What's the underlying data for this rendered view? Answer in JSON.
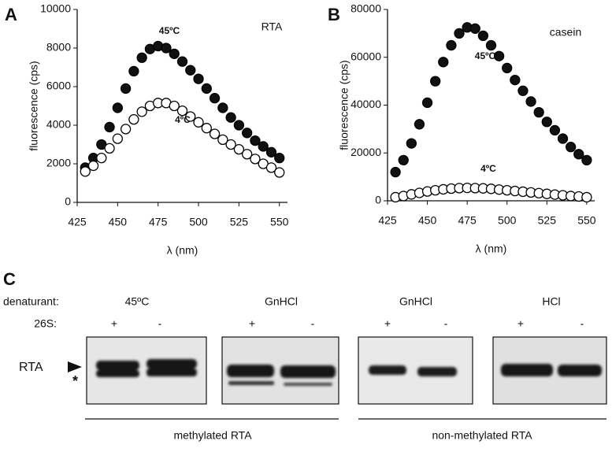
{
  "chart_data": [
    {
      "type": "scatter",
      "panel": "A",
      "x_label": "λ (nm)",
      "y_label": "fluorescence (cps)",
      "annotations": [
        "RTA",
        "45ºC",
        "4ºC"
      ],
      "x": [
        430,
        435,
        440,
        445,
        450,
        455,
        460,
        465,
        470,
        475,
        480,
        485,
        490,
        495,
        500,
        505,
        510,
        515,
        520,
        525,
        530,
        535,
        540,
        545,
        550
      ],
      "series": [
        {
          "color": "#111111",
          "values": [
            1800,
            2300,
            3000,
            3900,
            4900,
            5900,
            6800,
            7500,
            7950,
            8100,
            8000,
            7700,
            7300,
            6850,
            6400,
            5900,
            5400,
            4900,
            4400,
            4000,
            3600,
            3200,
            2900,
            2600,
            2300
          ]
        },
        {
          "color": "#ffffff",
          "values": [
            1600,
            1900,
            2300,
            2800,
            3300,
            3800,
            4300,
            4700,
            5000,
            5150,
            5150,
            5000,
            4750,
            4450,
            4150,
            3850,
            3550,
            3250,
            3000,
            2750,
            2500,
            2250,
            2000,
            1800,
            1550
          ]
        }
      ],
      "xlim": [
        425,
        555
      ],
      "xticks": [
        425,
        450,
        475,
        500,
        525,
        550
      ],
      "ylim": [
        0,
        10000
      ],
      "yticks": [
        0,
        2000,
        4000,
        6000,
        8000,
        10000
      ]
    },
    {
      "type": "scatter",
      "panel": "B",
      "x_label": "λ (nm)",
      "y_label": "fluorescence (cps)",
      "annotations": [
        "casein",
        "45ºC",
        "4ºC"
      ],
      "x": [
        430,
        435,
        440,
        445,
        450,
        455,
        460,
        465,
        470,
        475,
        480,
        485,
        490,
        495,
        500,
        505,
        510,
        515,
        520,
        525,
        530,
        535,
        540,
        545,
        550
      ],
      "series": [
        {
          "color": "#111111",
          "values": [
            12000,
            17000,
            24000,
            32000,
            41000,
            50000,
            58000,
            65000,
            70000,
            72500,
            72000,
            69000,
            65000,
            60500,
            55500,
            50500,
            46000,
            41500,
            37000,
            33000,
            29500,
            26000,
            22500,
            19500,
            17000
          ]
        },
        {
          "color": "#ffffff",
          "values": [
            1500,
            2000,
            2700,
            3300,
            3900,
            4400,
            4800,
            5100,
            5300,
            5400,
            5300,
            5200,
            5000,
            4700,
            4400,
            4100,
            3800,
            3500,
            3200,
            2900,
            2600,
            2300,
            2000,
            1800,
            1500
          ]
        }
      ],
      "xlim": [
        425,
        555
      ],
      "xticks": [
        425,
        450,
        475,
        500,
        525,
        550
      ],
      "ylim": [
        0,
        80000
      ],
      "yticks": [
        0,
        20000,
        40000,
        60000,
        80000
      ]
    }
  ],
  "panel_c": {
    "label": "C",
    "denaturant_label": "denaturant:",
    "denaturants": [
      "45ºC",
      "GnHCl",
      "GnHCl",
      "HCl"
    ],
    "row_label": "26S:",
    "lanes": [
      "+",
      "-"
    ],
    "protein": "RTA",
    "marker": "*",
    "groups": [
      "methylated RTA",
      "non-methylated RTA"
    ]
  }
}
